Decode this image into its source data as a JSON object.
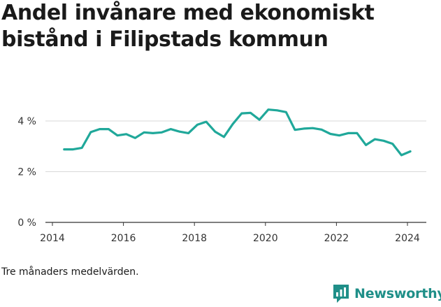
{
  "title": "Andel invånare med ekonomiskt bistånd i Filipstads kommun",
  "footnote": "Tre månaders medelvärden.",
  "brand": {
    "name": "Newsworthy",
    "icon": "newsworthy-logo-icon",
    "color": "#1f8f88"
  },
  "chart_data": {
    "type": "line",
    "title": "Andel invånare med ekonomiskt bistånd i Filipstads kommun",
    "xlabel": "",
    "ylabel": "",
    "xlim": [
      2014.0,
      2024.45
    ],
    "ylim": [
      0,
      5.0
    ],
    "y_ticks": [
      0,
      2,
      4
    ],
    "y_tick_labels": [
      "0 %",
      "2 %",
      "4 %"
    ],
    "x_ticks": [
      2014,
      2016,
      2018,
      2020,
      2022,
      2024
    ],
    "x_tick_labels": [
      "2014",
      "2016",
      "2018",
      "2020",
      "2022",
      "2024"
    ],
    "grid": "horizontal",
    "legend": "none",
    "line_color": "#20a89a",
    "series": [
      {
        "x": [
          2014.33,
          2014.58,
          2014.83,
          2015.08,
          2015.33,
          2015.58,
          2015.83,
          2016.08,
          2016.33,
          2016.58,
          2016.83,
          2017.08,
          2017.33,
          2017.58,
          2017.83,
          2018.08,
          2018.33,
          2018.58,
          2018.83,
          2019.08,
          2019.33,
          2019.58,
          2019.83,
          2020.08,
          2020.33,
          2020.58,
          2020.83,
          2021.08,
          2021.33,
          2021.58,
          2021.83,
          2022.08,
          2022.33,
          2022.58,
          2022.83,
          2023.08,
          2023.33,
          2023.58,
          2023.83,
          2024.08
        ],
        "y": [
          2.88,
          2.88,
          2.94,
          3.56,
          3.68,
          3.68,
          3.43,
          3.48,
          3.33,
          3.55,
          3.52,
          3.55,
          3.68,
          3.58,
          3.52,
          3.85,
          3.97,
          3.58,
          3.37,
          3.88,
          4.3,
          4.32,
          4.05,
          4.45,
          4.42,
          4.35,
          3.65,
          3.7,
          3.72,
          3.66,
          3.49,
          3.43,
          3.52,
          3.52,
          3.05,
          3.28,
          3.22,
          3.1,
          2.65,
          2.8
        ]
      }
    ]
  }
}
